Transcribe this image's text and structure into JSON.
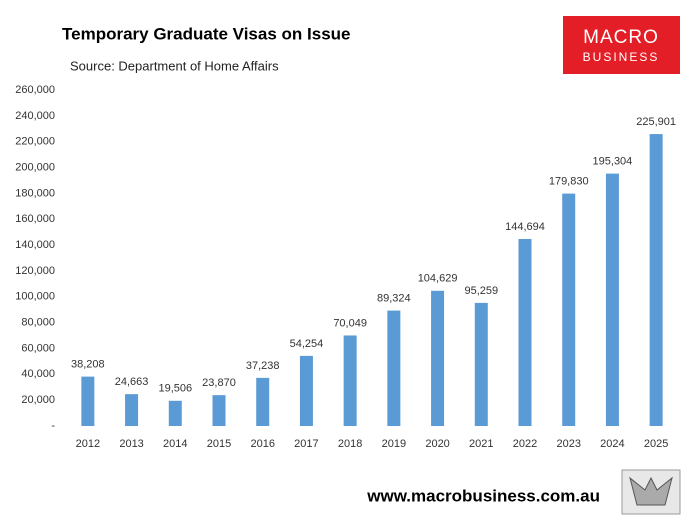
{
  "chart_data": {
    "type": "bar",
    "title": "Temporary Graduate Visas on Issue",
    "subtitle": "Source: Department of Home Affairs",
    "categories": [
      "2012",
      "2013",
      "2014",
      "2015",
      "2016",
      "2017",
      "2018",
      "2019",
      "2020",
      "2021",
      "2022",
      "2023",
      "2024",
      "2025"
    ],
    "values": [
      38208,
      24663,
      19506,
      23870,
      37238,
      54254,
      70049,
      89324,
      104629,
      95259,
      144694,
      179830,
      195304,
      225901
    ],
    "value_labels": [
      "38,208",
      "24,663",
      "19,506",
      "23,870",
      "37,238",
      "54,254",
      "70,049",
      "89,324",
      "104,629",
      "95,259",
      "144,694",
      "179,830",
      "195,304",
      "225,901"
    ],
    "color": "#5b9bd5",
    "ylim": [
      0,
      260000
    ],
    "yticks": [
      {
        "value": 0,
        "label": "-"
      },
      {
        "value": 20000,
        "label": "20,000"
      },
      {
        "value": 40000,
        "label": "40,000"
      },
      {
        "value": 60000,
        "label": "60,000"
      },
      {
        "value": 80000,
        "label": "80,000"
      },
      {
        "value": 100000,
        "label": "100,000"
      },
      {
        "value": 120000,
        "label": "120,000"
      },
      {
        "value": 140000,
        "label": "140,000"
      },
      {
        "value": 160000,
        "label": "160,000"
      },
      {
        "value": 180000,
        "label": "180,000"
      },
      {
        "value": 200000,
        "label": "200,000"
      },
      {
        "value": 220000,
        "label": "220,000"
      },
      {
        "value": 240000,
        "label": "240,000"
      },
      {
        "value": 260000,
        "label": "260,000"
      }
    ],
    "grid": false
  },
  "branding": {
    "logo_line1": "MACRO",
    "logo_line2": "BUSINESS",
    "website": "www.macrobusiness.com.au"
  }
}
